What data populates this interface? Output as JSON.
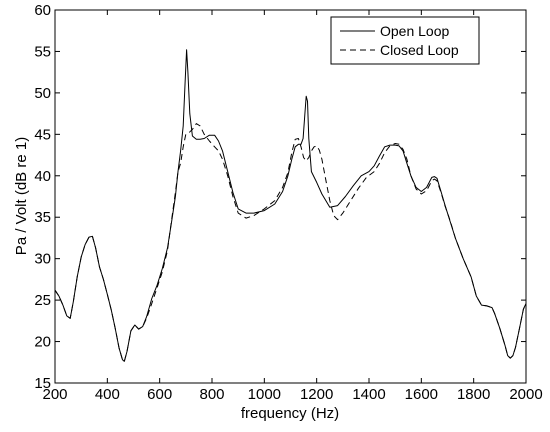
{
  "chart_data": {
    "type": "line",
    "title": "",
    "xlabel": "frequency (Hz)",
    "ylabel": "Pa / Volt (dB re 1)",
    "xlim": [
      200,
      2000
    ],
    "ylim": [
      15,
      60
    ],
    "xticks": [
      "200",
      "400",
      "600",
      "800",
      "1000",
      "1200",
      "1400",
      "1600",
      "1800",
      "2000"
    ],
    "yticks": [
      "15",
      "20",
      "25",
      "30",
      "35",
      "40",
      "45",
      "50",
      "55",
      "60"
    ],
    "grid": false,
    "legend_position": "top-right",
    "series": [
      {
        "name": "Open Loop",
        "style": "solid",
        "color": "#000000",
        "x": [
          200,
          215,
          230,
          245,
          258,
          270,
          285,
          300,
          315,
          330,
          343,
          355,
          370,
          385,
          400,
          415,
          430,
          445,
          458,
          465,
          475,
          490,
          505,
          520,
          535,
          550,
          570,
          590,
          610,
          630,
          645,
          660,
          670,
          680,
          690,
          697,
          703,
          708,
          715,
          725,
          740,
          755,
          770,
          790,
          810,
          825,
          840,
          860,
          880,
          900,
          930,
          960,
          1000,
          1040,
          1070,
          1090,
          1105,
          1118,
          1130,
          1140,
          1148,
          1155,
          1160,
          1165,
          1170,
          1180,
          1200,
          1220,
          1250,
          1280,
          1310,
          1340,
          1370,
          1400,
          1420,
          1440,
          1460,
          1480,
          1500,
          1515,
          1530,
          1545,
          1560,
          1580,
          1600,
          1620,
          1640,
          1650,
          1660,
          1675,
          1690,
          1710,
          1730,
          1760,
          1790,
          1810,
          1830,
          1850,
          1870,
          1880,
          1900,
          1920,
          1930,
          1940,
          1950,
          1960,
          1975,
          1990,
          2000
        ],
        "y": [
          26.2,
          25.5,
          24.4,
          23.1,
          22.8,
          24.8,
          27.8,
          30.2,
          31.7,
          32.6,
          32.7,
          31.3,
          29.0,
          27.5,
          25.7,
          23.8,
          21.6,
          19.2,
          17.8,
          17.6,
          18.8,
          21.3,
          22.0,
          21.5,
          21.8,
          23.0,
          25.2,
          26.8,
          28.8,
          31.3,
          34.3,
          37.5,
          40.5,
          43.0,
          46.0,
          51.0,
          55.2,
          52.5,
          47.5,
          44.8,
          44.4,
          44.4,
          44.5,
          44.9,
          44.9,
          44.2,
          43.0,
          40.5,
          38.0,
          36.0,
          35.5,
          35.5,
          35.8,
          36.6,
          38.1,
          40.0,
          42.0,
          43.5,
          43.8,
          43.8,
          44.5,
          47.5,
          49.6,
          49.0,
          44.5,
          40.5,
          39.2,
          37.8,
          36.2,
          36.4,
          37.5,
          38.8,
          40.0,
          40.5,
          41.2,
          42.4,
          43.5,
          43.7,
          43.7,
          43.6,
          43.0,
          41.5,
          40.0,
          38.6,
          38.1,
          38.6,
          39.8,
          39.9,
          39.7,
          38.1,
          36.5,
          34.5,
          32.5,
          30.0,
          27.8,
          25.5,
          24.4,
          24.3,
          24.1,
          23.4,
          21.6,
          19.5,
          18.3,
          18.0,
          18.3,
          19.3,
          21.6,
          23.9,
          24.6
        ]
      },
      {
        "name": "Closed Loop",
        "style": "dashed",
        "color": "#000000",
        "x": [
          200,
          215,
          230,
          245,
          258,
          270,
          285,
          300,
          315,
          330,
          343,
          355,
          370,
          385,
          400,
          415,
          430,
          445,
          458,
          465,
          475,
          490,
          505,
          520,
          535,
          550,
          570,
          590,
          610,
          630,
          645,
          660,
          670,
          680,
          690,
          700,
          712,
          725,
          740,
          755,
          770,
          790,
          810,
          825,
          840,
          860,
          880,
          900,
          930,
          960,
          1000,
          1040,
          1070,
          1090,
          1105,
          1118,
          1130,
          1140,
          1150,
          1160,
          1170,
          1180,
          1190,
          1200,
          1210,
          1220,
          1235,
          1250,
          1265,
          1280,
          1300,
          1330,
          1360,
          1390,
          1420,
          1440,
          1460,
          1480,
          1500,
          1515,
          1530,
          1545,
          1560,
          1580,
          1600,
          1620,
          1640,
          1650,
          1660,
          1675,
          1690,
          1710,
          1730,
          1760,
          1790,
          1810,
          1830,
          1850,
          1870,
          1880,
          1900,
          1920,
          1930,
          1940,
          1950,
          1960,
          1975,
          1990,
          2000
        ],
        "y": [
          26.2,
          25.5,
          24.4,
          23.1,
          22.8,
          24.8,
          27.8,
          30.2,
          31.7,
          32.6,
          32.7,
          31.3,
          29.0,
          27.5,
          25.7,
          23.8,
          21.6,
          19.2,
          17.8,
          17.6,
          18.8,
          21.3,
          22.0,
          21.5,
          21.8,
          22.8,
          24.6,
          26.5,
          28.4,
          31.0,
          34.5,
          38.0,
          40.5,
          41.5,
          43.5,
          45.0,
          45.2,
          45.6,
          46.3,
          46.0,
          45.0,
          44.2,
          43.5,
          43.0,
          42.0,
          40.0,
          37.5,
          35.5,
          34.9,
          35.2,
          36.0,
          37.0,
          38.6,
          40.4,
          42.8,
          44.4,
          44.5,
          43.5,
          42.2,
          41.8,
          42.2,
          43.0,
          43.5,
          43.6,
          43.1,
          42.0,
          39.5,
          37.0,
          35.2,
          34.7,
          35.5,
          37.0,
          38.5,
          39.8,
          40.5,
          41.5,
          42.8,
          43.6,
          43.9,
          43.8,
          43.2,
          42.0,
          40.0,
          38.4,
          37.8,
          38.2,
          39.4,
          39.6,
          39.4,
          38.0,
          36.4,
          34.6,
          32.5,
          30.0,
          27.8,
          25.5,
          24.4,
          24.3,
          24.1,
          23.4,
          21.6,
          19.5,
          18.3,
          18.0,
          18.3,
          19.3,
          21.6,
          23.9,
          24.6
        ]
      }
    ]
  }
}
